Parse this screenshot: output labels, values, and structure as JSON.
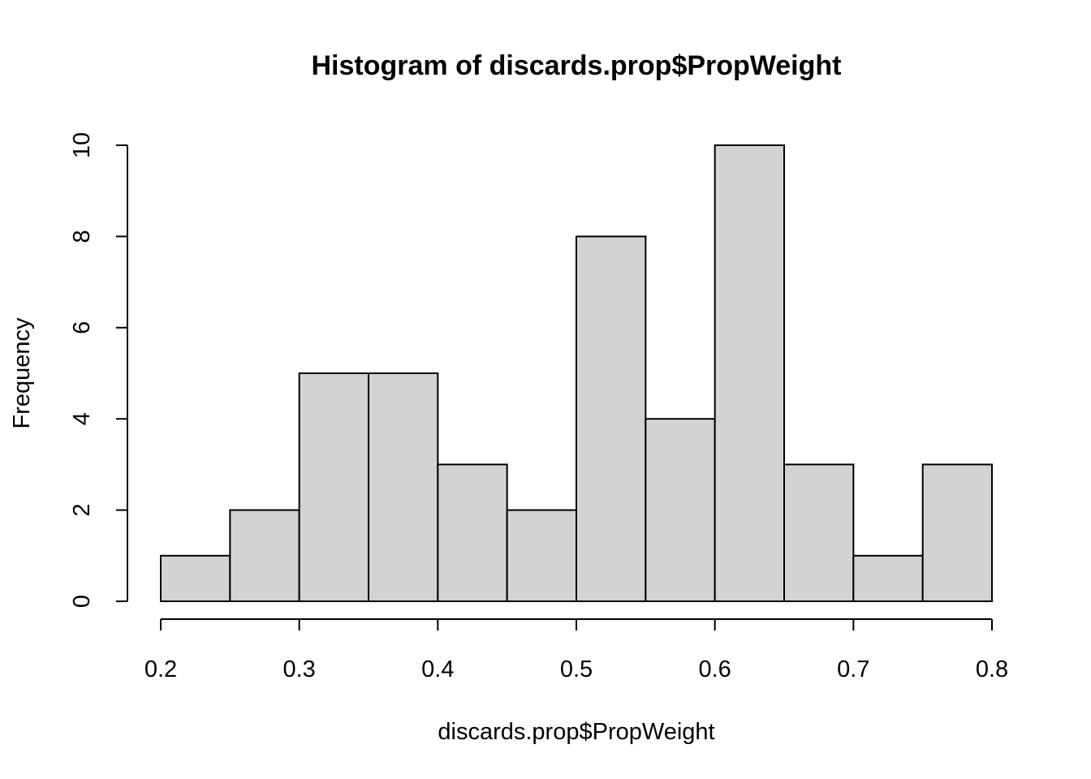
{
  "chart_data": {
    "type": "bar",
    "title": "Histogram of discards.prop$PropWeight",
    "xlabel": "discards.prop$PropWeight",
    "ylabel": "Frequency",
    "bins": [
      {
        "start": 0.2,
        "end": 0.25,
        "count": 1
      },
      {
        "start": 0.25,
        "end": 0.3,
        "count": 2
      },
      {
        "start": 0.3,
        "end": 0.35,
        "count": 5
      },
      {
        "start": 0.35,
        "end": 0.4,
        "count": 5
      },
      {
        "start": 0.4,
        "end": 0.45,
        "count": 3
      },
      {
        "start": 0.45,
        "end": 0.5,
        "count": 2
      },
      {
        "start": 0.5,
        "end": 0.55,
        "count": 8
      },
      {
        "start": 0.55,
        "end": 0.6,
        "count": 4
      },
      {
        "start": 0.6,
        "end": 0.65,
        "count": 10
      },
      {
        "start": 0.65,
        "end": 0.7,
        "count": 3
      },
      {
        "start": 0.7,
        "end": 0.75,
        "count": 1
      },
      {
        "start": 0.75,
        "end": 0.8,
        "count": 3
      }
    ],
    "x_ticks": [
      "0.2",
      "0.3",
      "0.4",
      "0.5",
      "0.6",
      "0.7",
      "0.8"
    ],
    "y_ticks": [
      "0",
      "2",
      "4",
      "6",
      "8",
      "10"
    ],
    "xlim": [
      0.2,
      0.8
    ],
    "ylim": [
      0,
      10
    ],
    "grid": false,
    "colors": {
      "bar_fill": "#d3d3d3",
      "bar_stroke": "#000000"
    }
  }
}
